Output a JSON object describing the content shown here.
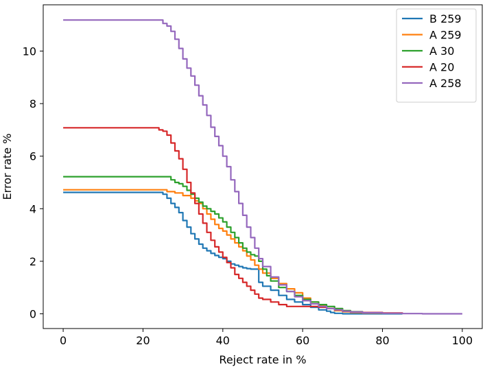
{
  "chart_data": {
    "type": "line",
    "xlabel": "Reject rate in %",
    "ylabel": "Error rate %",
    "xlim": [
      -5,
      105
    ],
    "ylim": [
      -0.56,
      11.76
    ],
    "xticks": [
      0,
      20,
      40,
      60,
      80,
      100
    ],
    "yticks": [
      0,
      2,
      4,
      6,
      8,
      10
    ],
    "grid": false,
    "legend_position": "top-right",
    "series": [
      {
        "name": "B 259",
        "color": "#1f77b4",
        "x": [
          0,
          5,
          10,
          15,
          20,
          24,
          25,
          26,
          27,
          28,
          29,
          30,
          31,
          32,
          33,
          34,
          35,
          36,
          37,
          38,
          39,
          40,
          41,
          42,
          43,
          44,
          45,
          46,
          47,
          48,
          49,
          50,
          52,
          54,
          56,
          58,
          60,
          62,
          64,
          66,
          67,
          68,
          70,
          75,
          80,
          85
        ],
        "y": [
          4.62,
          4.62,
          4.62,
          4.62,
          4.62,
          4.62,
          4.55,
          4.4,
          4.2,
          4.05,
          3.85,
          3.55,
          3.3,
          3.05,
          2.85,
          2.65,
          2.5,
          2.4,
          2.3,
          2.22,
          2.15,
          2.1,
          2.0,
          1.9,
          1.85,
          1.8,
          1.75,
          1.72,
          1.7,
          1.7,
          1.2,
          1.05,
          0.9,
          0.7,
          0.55,
          0.45,
          0.35,
          0.25,
          0.15,
          0.1,
          0.05,
          0.02,
          0.0,
          0.0,
          0.0,
          0.0
        ]
      },
      {
        "name": "A 259",
        "color": "#ff7f0e",
        "x": [
          0,
          5,
          10,
          15,
          20,
          25,
          26,
          28,
          30,
          32,
          33,
          34,
          35,
          36,
          37,
          38,
          39,
          40,
          41,
          42,
          43,
          44,
          45,
          46,
          47,
          48,
          49,
          50,
          52,
          54,
          56,
          58,
          60,
          62,
          64,
          66,
          68,
          70,
          72,
          75,
          80,
          85
        ],
        "y": [
          4.72,
          4.72,
          4.72,
          4.72,
          4.72,
          4.72,
          4.65,
          4.6,
          4.5,
          4.4,
          4.3,
          4.2,
          4.0,
          3.8,
          3.6,
          3.4,
          3.25,
          3.15,
          3.0,
          2.85,
          2.7,
          2.55,
          2.4,
          2.2,
          2.05,
          1.85,
          1.7,
          1.55,
          1.35,
          1.15,
          0.95,
          0.8,
          0.6,
          0.45,
          0.3,
          0.2,
          0.12,
          0.08,
          0.05,
          0.03,
          0.02,
          0.01
        ]
      },
      {
        "name": "A 30",
        "color": "#2ca02c",
        "x": [
          0,
          5,
          10,
          15,
          20,
          26,
          27,
          28,
          29,
          30,
          31,
          32,
          33,
          34,
          35,
          36,
          37,
          38,
          39,
          40,
          41,
          42,
          43,
          44,
          45,
          46,
          47,
          48,
          49,
          50,
          51,
          52,
          54,
          56,
          58,
          60,
          62,
          64,
          66,
          68,
          70,
          72,
          75,
          80,
          85
        ],
        "y": [
          5.22,
          5.22,
          5.22,
          5.22,
          5.22,
          5.22,
          5.1,
          5.0,
          4.95,
          4.85,
          4.7,
          4.55,
          4.4,
          4.25,
          4.1,
          4.0,
          3.9,
          3.8,
          3.65,
          3.5,
          3.3,
          3.1,
          2.9,
          2.7,
          2.5,
          2.35,
          2.25,
          2.2,
          2.0,
          1.7,
          1.45,
          1.25,
          1.0,
          0.85,
          0.7,
          0.55,
          0.45,
          0.35,
          0.28,
          0.2,
          0.12,
          0.08,
          0.05,
          0.02,
          0.01
        ]
      },
      {
        "name": "A 20",
        "color": "#d62728",
        "x": [
          0,
          5,
          10,
          15,
          20,
          22,
          24,
          25,
          26,
          27,
          28,
          29,
          30,
          31,
          32,
          33,
          34,
          35,
          36,
          37,
          38,
          39,
          40,
          41,
          42,
          43,
          44,
          45,
          46,
          47,
          48,
          49,
          50,
          52,
          54,
          56,
          58,
          60,
          62,
          64,
          66,
          68,
          70,
          72,
          75,
          80,
          85
        ],
        "y": [
          7.08,
          7.08,
          7.08,
          7.08,
          7.08,
          7.08,
          7.0,
          6.95,
          6.8,
          6.5,
          6.2,
          5.9,
          5.5,
          5.0,
          4.6,
          4.2,
          3.8,
          3.45,
          3.1,
          2.8,
          2.55,
          2.35,
          2.15,
          1.95,
          1.75,
          1.5,
          1.35,
          1.2,
          1.05,
          0.9,
          0.75,
          0.6,
          0.55,
          0.45,
          0.35,
          0.28,
          0.28,
          0.28,
          0.28,
          0.25,
          0.2,
          0.15,
          0.1,
          0.07,
          0.05,
          0.03,
          0.02
        ]
      },
      {
        "name": "A 258",
        "color": "#9467bd",
        "x": [
          0,
          5,
          10,
          15,
          20,
          24,
          25,
          26,
          27,
          28,
          29,
          30,
          31,
          32,
          33,
          34,
          35,
          36,
          37,
          38,
          39,
          40,
          41,
          42,
          43,
          44,
          45,
          46,
          47,
          48,
          49,
          50,
          52,
          54,
          56,
          58,
          60,
          62,
          64,
          66,
          68,
          70,
          72,
          75,
          80,
          85,
          90,
          95,
          100
        ],
        "y": [
          11.18,
          11.18,
          11.18,
          11.18,
          11.18,
          11.18,
          11.05,
          10.95,
          10.75,
          10.45,
          10.1,
          9.7,
          9.35,
          9.05,
          8.7,
          8.3,
          7.95,
          7.55,
          7.1,
          6.75,
          6.4,
          6.0,
          5.6,
          5.1,
          4.65,
          4.2,
          3.75,
          3.3,
          2.9,
          2.5,
          2.1,
          1.8,
          1.4,
          1.1,
          0.85,
          0.65,
          0.5,
          0.38,
          0.28,
          0.2,
          0.15,
          0.1,
          0.07,
          0.04,
          0.02,
          0.01,
          0.0,
          0.0,
          0.0
        ]
      }
    ]
  }
}
